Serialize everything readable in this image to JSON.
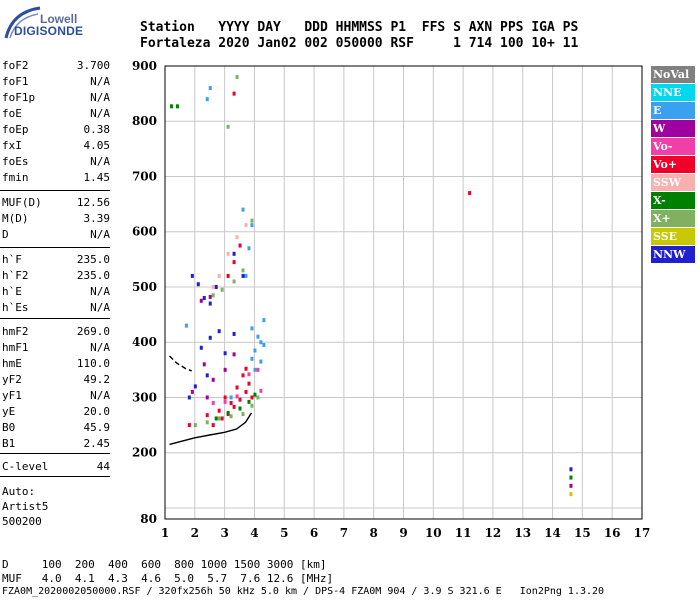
{
  "logo": {
    "top": "Lowell",
    "bottom": "DIGISONDE"
  },
  "header": {
    "line1": "Station   YYYY DAY   DDD HHMMSS P1  FFS S AXN PPS IGA PS",
    "line2": "Fortaleza 2020 Jan02 002 050000 RSF     1 714 100 10+ 11"
  },
  "params": {
    "group1": [
      {
        "label": "foF2",
        "value": "3.700"
      },
      {
        "label": "foF1",
        "value": "N/A"
      },
      {
        "label": "foF1p",
        "value": "N/A"
      },
      {
        "label": "foE",
        "value": "N/A"
      },
      {
        "label": "foEp",
        "value": "0.38"
      },
      {
        "label": "fxI",
        "value": "4.05"
      },
      {
        "label": "foEs",
        "value": "N/A"
      },
      {
        "label": "fmin",
        "value": "1.45"
      }
    ],
    "group2": [
      {
        "label": "MUF(D)",
        "value": "12.56"
      },
      {
        "label": "M(D)",
        "value": "3.39"
      },
      {
        "label": "D",
        "value": "N/A"
      }
    ],
    "group3": [
      {
        "label": "h`F",
        "value": "235.0"
      },
      {
        "label": "h`F2",
        "value": "235.0"
      },
      {
        "label": "h`E",
        "value": "N/A"
      },
      {
        "label": "h`Es",
        "value": "N/A"
      }
    ],
    "group4": [
      {
        "label": "hmF2",
        "value": "269.0"
      },
      {
        "label": "hmF1",
        "value": "N/A"
      },
      {
        "label": "hmE",
        "value": "110.0"
      },
      {
        "label": "yF2",
        "value": "49.2"
      },
      {
        "label": "yF1",
        "value": "N/A"
      },
      {
        "label": "yE",
        "value": "20.0"
      },
      {
        "label": "B0",
        "value": "45.9"
      },
      {
        "label": "B1",
        "value": "2.45"
      }
    ],
    "group5": [
      {
        "label": "C-level",
        "value": "44"
      }
    ],
    "auto_label": "Auto:",
    "artist": "Artist5",
    "version": "500200"
  },
  "legend": [
    {
      "label": "NoVal",
      "color": "#808080"
    },
    {
      "label": "NNE",
      "color": "#00d8f0"
    },
    {
      "label": "E",
      "color": "#3aa0f0"
    },
    {
      "label": "W",
      "color": "#a000a0"
    },
    {
      "label": "Vo-",
      "color": "#f040a8"
    },
    {
      "label": "Vo+",
      "color": "#f00028"
    },
    {
      "label": "SSW",
      "color": "#f8b0b0"
    },
    {
      "label": "X-",
      "color": "#008000"
    },
    {
      "label": "X+",
      "color": "#80b060"
    },
    {
      "label": "SSE",
      "color": "#c8c800"
    },
    {
      "label": "NNW",
      "color": "#2020d0"
    }
  ],
  "footer": {
    "d_line": "D     100  200  400  600  800 1000 1500 3000 [km]",
    "muf_line": "MUF   4.0  4.1  4.3  4.6  5.0  5.7  7.6 12.6 [MHz]",
    "file_line": "FZA0M_2020002050000.RSF / 320fx256h 50 kHz 5.0 km / DPS-4 FZA0M 904 / 3.9 S 321.6 E   Ion2Png 1.3.20"
  },
  "chart_data": {
    "type": "scatter",
    "xlim": [
      1,
      17
    ],
    "ylim": [
      80,
      900
    ],
    "x_ticks": [
      1,
      2,
      3,
      4,
      5,
      6,
      7,
      8,
      9,
      10,
      11,
      12,
      13,
      14,
      15,
      16,
      17
    ],
    "y_ticks": [
      80,
      200,
      300,
      400,
      500,
      600,
      700,
      800,
      900
    ],
    "y_grid": [
      100,
      200,
      300,
      400,
      500,
      600,
      700,
      800,
      900
    ],
    "series": [
      {
        "color": "#f00028",
        "points": [
          [
            2.6,
            250
          ],
          [
            2.9,
            262
          ],
          [
            3.1,
            270
          ],
          [
            3.3,
            283
          ],
          [
            3.5,
            296
          ],
          [
            3.7,
            310
          ],
          [
            3.8,
            325
          ],
          [
            3.6,
            340
          ],
          [
            3.9,
            300
          ],
          [
            3.2,
            290
          ],
          [
            2.8,
            276
          ],
          [
            3.0,
            300
          ],
          [
            3.4,
            318
          ],
          [
            3.7,
            352
          ],
          [
            2.4,
            268
          ],
          [
            1.8,
            250
          ],
          [
            3.1,
            520
          ],
          [
            3.3,
            545
          ],
          [
            3.5,
            575
          ],
          [
            11.2,
            670
          ],
          [
            3.3,
            850
          ]
        ]
      },
      {
        "color": "#3aa0f0",
        "points": [
          [
            3.9,
            370
          ],
          [
            4.0,
            385
          ],
          [
            4.1,
            410
          ],
          [
            4.2,
            400
          ],
          [
            4.3,
            395
          ],
          [
            3.9,
            425
          ],
          [
            4.0,
            350
          ],
          [
            4.2,
            365
          ],
          [
            4.3,
            440
          ],
          [
            3.7,
            520
          ],
          [
            3.8,
            570
          ],
          [
            3.9,
            612
          ],
          [
            3.6,
            640
          ],
          [
            2.4,
            840
          ],
          [
            2.5,
            860
          ],
          [
            3.2,
            300
          ],
          [
            1.7,
            430
          ]
        ]
      },
      {
        "color": "#2020d0",
        "points": [
          [
            1.9,
            520
          ],
          [
            2.1,
            505
          ],
          [
            2.3,
            480
          ],
          [
            2.5,
            470
          ],
          [
            2.7,
            500
          ],
          [
            2.2,
            390
          ],
          [
            2.5,
            408
          ],
          [
            2.8,
            420
          ],
          [
            3.0,
            380
          ],
          [
            3.3,
            560
          ],
          [
            3.6,
            520
          ],
          [
            1.8,
            300
          ],
          [
            2.0,
            320
          ],
          [
            2.4,
            340
          ],
          [
            3.3,
            415
          ],
          [
            14.6,
            170
          ]
        ]
      },
      {
        "color": "#80b060",
        "points": [
          [
            2.0,
            250
          ],
          [
            2.4,
            255
          ],
          [
            2.8,
            262
          ],
          [
            3.2,
            266
          ],
          [
            3.6,
            270
          ],
          [
            3.9,
            285
          ],
          [
            4.1,
            300
          ],
          [
            2.6,
            485
          ],
          [
            2.9,
            495
          ],
          [
            3.3,
            510
          ],
          [
            3.6,
            530
          ],
          [
            3.9,
            620
          ],
          [
            3.1,
            790
          ],
          [
            3.4,
            880
          ]
        ]
      },
      {
        "color": "#008000",
        "points": [
          [
            2.7,
            262
          ],
          [
            3.1,
            272
          ],
          [
            3.5,
            280
          ],
          [
            3.8,
            292
          ],
          [
            4.0,
            305
          ],
          [
            1.2,
            827
          ],
          [
            1.4,
            827
          ],
          [
            14.6,
            155
          ]
        ]
      },
      {
        "color": "#a000a0",
        "points": [
          [
            2.2,
            475
          ],
          [
            2.5,
            482
          ],
          [
            2.3,
            360
          ],
          [
            2.6,
            332
          ],
          [
            3.0,
            350
          ],
          [
            3.3,
            378
          ],
          [
            1.9,
            310
          ],
          [
            2.4,
            300
          ],
          [
            14.6,
            140
          ]
        ]
      },
      {
        "color": "#f040a8",
        "points": [
          [
            3.0,
            292
          ],
          [
            3.4,
            302
          ],
          [
            3.8,
            342
          ],
          [
            4.1,
            350
          ],
          [
            4.2,
            312
          ],
          [
            2.6,
            290
          ]
        ]
      },
      {
        "color": "#f8b0b0",
        "points": [
          [
            3.1,
            560
          ],
          [
            3.4,
            590
          ],
          [
            3.7,
            612
          ],
          [
            2.6,
            500
          ],
          [
            2.8,
            520
          ]
        ]
      },
      {
        "color": "#c8c800",
        "points": [
          [
            14.6,
            125
          ]
        ]
      }
    ],
    "curves": [
      {
        "style": "solid",
        "points": [
          [
            1.15,
            215
          ],
          [
            1.5,
            220
          ],
          [
            2.0,
            227
          ],
          [
            2.5,
            232
          ],
          [
            3.0,
            237
          ],
          [
            3.4,
            243
          ],
          [
            3.7,
            255
          ],
          [
            3.9,
            272
          ]
        ]
      },
      {
        "style": "dashed",
        "points": [
          [
            1.15,
            375
          ],
          [
            1.4,
            362
          ],
          [
            1.7,
            352
          ],
          [
            1.9,
            348
          ]
        ]
      }
    ]
  }
}
